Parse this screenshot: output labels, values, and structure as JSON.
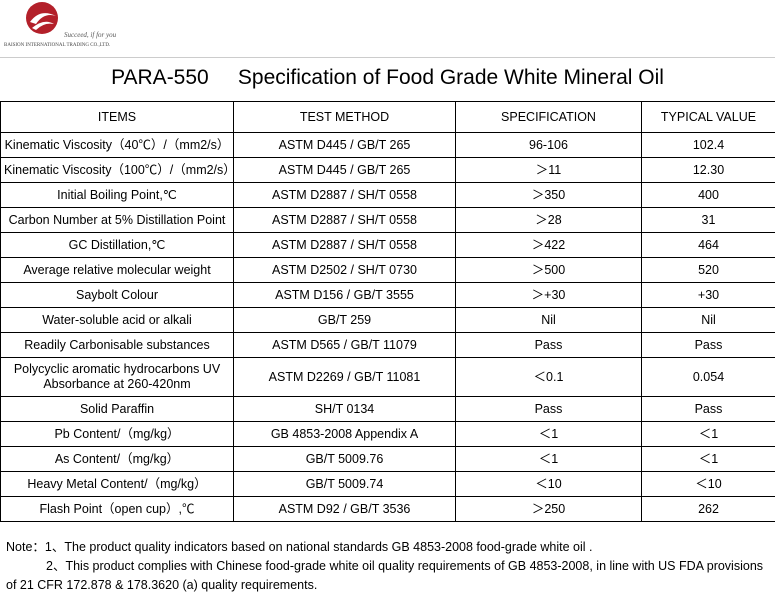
{
  "header": {
    "tagline": "Succeed, if for you",
    "company": "BAISION INTERNATIONAL TRADING CO.,LTD."
  },
  "title": "PARA-550     Specification of Food Grade White Mineral Oil",
  "table": {
    "columns": [
      "ITEMS",
      "TEST METHOD",
      "SPECIFICATION",
      "TYPICAL VALUE"
    ],
    "rows": [
      [
        "Kinematic Viscosity（40℃）/（mm2/s）",
        "ASTM D445 / GB/T 265",
        "96-106",
        "102.4"
      ],
      [
        "Kinematic Viscosity（100℃）/（mm2/s）",
        "ASTM D445 / GB/T 265",
        "＞11",
        "12.30"
      ],
      [
        "Initial Boiling Point,℃",
        "ASTM D2887 / SH/T 0558",
        "＞350",
        "400"
      ],
      [
        "Carbon Number at 5% Distillation Point",
        "ASTM D2887 / SH/T 0558",
        "＞28",
        "31"
      ],
      [
        "GC Distillation,℃",
        "ASTM D2887 / SH/T 0558",
        "＞422",
        "464"
      ],
      [
        "Average relative molecular weight",
        "ASTM D2502 / SH/T 0730",
        "＞500",
        "520"
      ],
      [
        "Saybolt Colour",
        "ASTM D156 / GB/T 3555",
        "＞+30",
        "+30"
      ],
      [
        "Water-soluble acid or alkali",
        "GB/T 259",
        "Nil",
        "Nil"
      ],
      [
        "Readily Carbonisable substances",
        "ASTM D565 / GB/T 11079",
        "Pass",
        "Pass"
      ],
      [
        "Polycyclic aromatic hydrocarbons UV Absorbance at 260-420nm",
        "ASTM D2269 / GB/T 11081",
        "＜0.1",
        "0.054"
      ],
      [
        "Solid Paraffin",
        "SH/T 0134",
        "Pass",
        "Pass"
      ],
      [
        "Pb Content/（mg/kg）",
        "GB 4853-2008 Appendix A",
        "＜1",
        "＜1"
      ],
      [
        "As Content/（mg/kg）",
        "GB/T 5009.76",
        "＜1",
        "＜1"
      ],
      [
        "Heavy Metal Content/（mg/kg）",
        "GB/T 5009.74",
        "＜10",
        "＜10"
      ],
      [
        "Flash Point（open cup）,℃",
        "ASTM D92 / GB/T 3536",
        "＞250",
        "262"
      ]
    ]
  },
  "notes": [
    "Note：1、The product quality indicators based on national standards GB 4853-2008 food-grade white oil .",
    "2、This product complies with Chinese food-grade white oil quality requirements of GB 4853-2008, in line with US FDA provisions of 21 CFR 172.878 & 178.3620 (a) quality requirements."
  ]
}
